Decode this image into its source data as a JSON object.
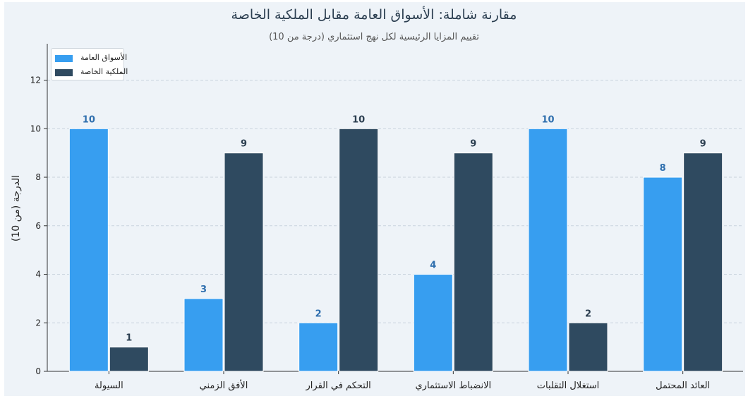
{
  "chart_data": {
    "type": "bar",
    "title": "مقارنة شاملة: الأسواق العامة مقابل الملكية الخاصة",
    "subtitle": "تقييم المزايا الرئيسية لكل نهج استثماري (درجة من 10)",
    "xlabel": "",
    "ylabel": "الدرجة (من 10)",
    "categories": [
      "السيولة",
      "الأفق الزمني",
      "التحكم في القرار",
      "الانضباط الاستثماري",
      "استغلال التقلبات",
      "العائد المحتمل"
    ],
    "series": [
      {
        "name": "الأسواق العامة",
        "values": [
          10,
          3,
          2,
          4,
          10,
          8
        ],
        "color": "#379ef0",
        "label_color": "#2f6fae"
      },
      {
        "name": "الملكية الخاصة",
        "values": [
          1,
          9,
          10,
          9,
          2,
          9
        ],
        "color": "#2f4a60",
        "label_color": "#2b3e50"
      }
    ],
    "ylim": [
      0,
      13.5
    ],
    "yticks": [
      0,
      2,
      4,
      6,
      8,
      10,
      12
    ],
    "grid": true,
    "legend": "top-left"
  }
}
